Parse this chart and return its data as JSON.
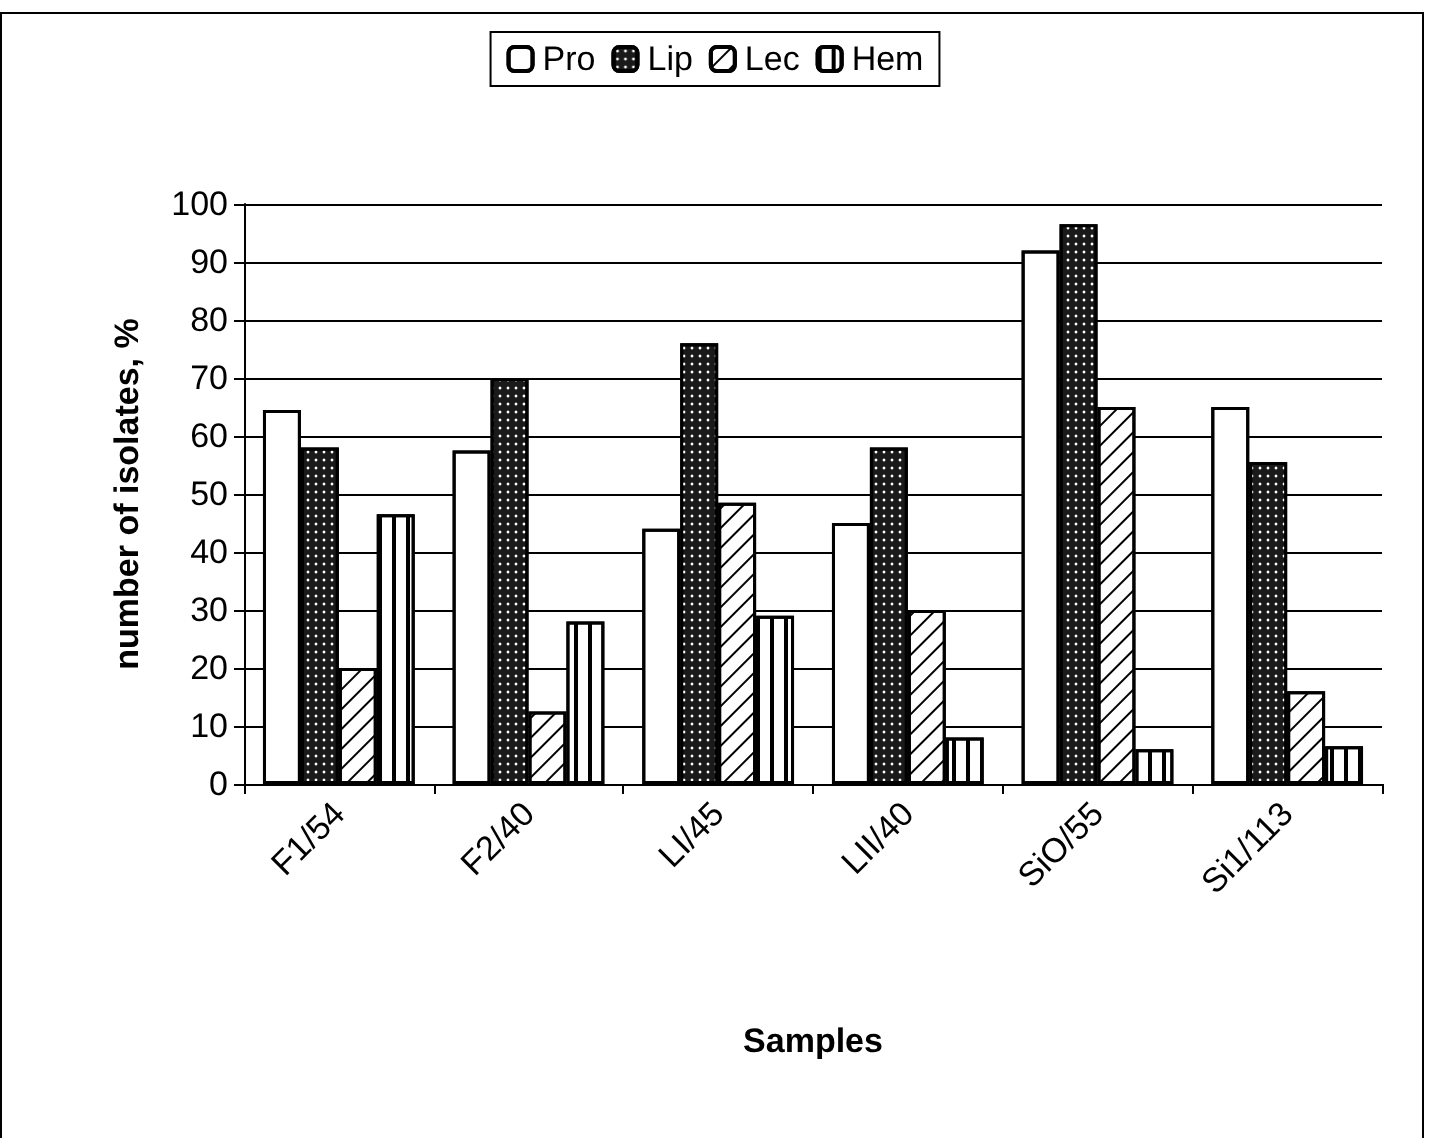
{
  "chart_data": {
    "type": "bar",
    "xlabel": "Samples",
    "ylabel": "number of isolates, %",
    "categories": [
      "F1/54",
      "F2/40",
      "LI/45",
      "LII/40",
      "SiO/55",
      "Si1/113"
    ],
    "series": [
      {
        "name": "Pro",
        "color": "#ffffff",
        "values": [
          64.5,
          57.5,
          44,
          45,
          92,
          65
        ]
      },
      {
        "name": "Lip",
        "color": "#1a1a1a",
        "values": [
          58,
          70,
          76,
          58,
          96.5,
          55.5
        ]
      },
      {
        "name": "Lec",
        "color": "#ffffff",
        "values": [
          20,
          12.5,
          48.5,
          30,
          65,
          16
        ]
      },
      {
        "name": "Hem",
        "color": "#ffffff",
        "values": [
          46.5,
          28,
          29,
          8,
          6,
          6.5
        ]
      }
    ],
    "ylim": [
      0,
      100
    ],
    "yticks": [
      0,
      10,
      20,
      30,
      40,
      50,
      60,
      70,
      80,
      90,
      100
    ],
    "grid": "y",
    "legend": "top"
  }
}
